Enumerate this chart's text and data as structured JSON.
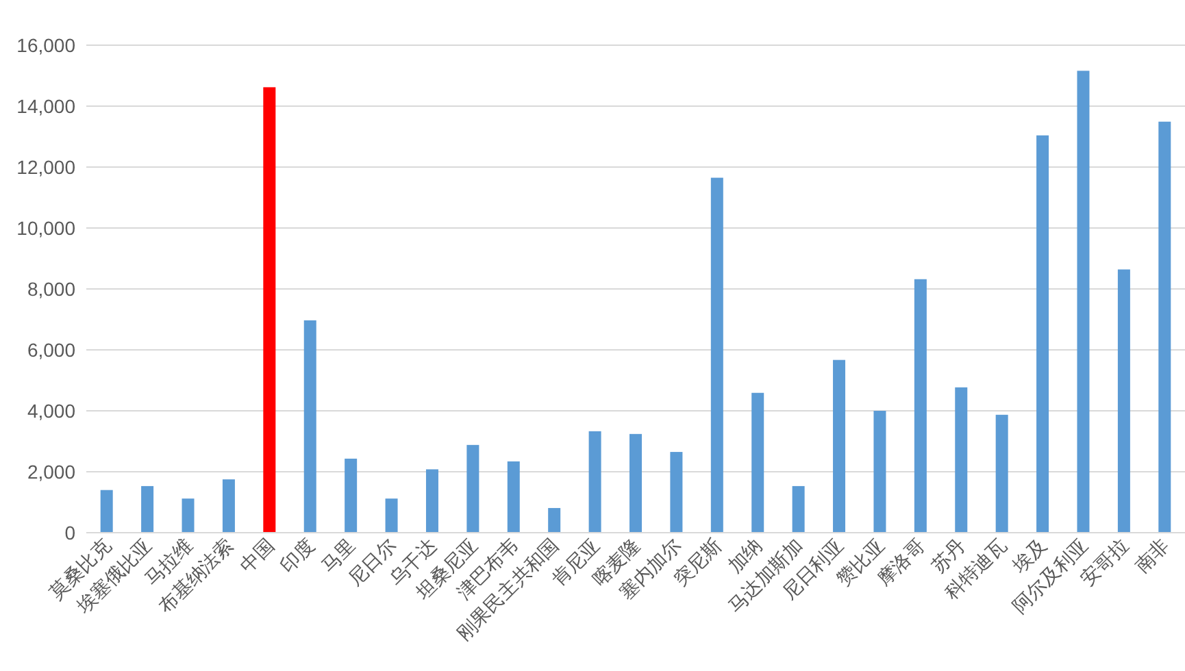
{
  "chart_data": {
    "type": "bar",
    "categories": [
      "莫桑比克",
      "埃塞俄比亚",
      "马拉维",
      "布基纳法索",
      "中国",
      "印度",
      "马里",
      "尼日尔",
      "乌干达",
      "坦桑尼亚",
      "津巴布韦",
      "刚果民主共和国",
      "肯尼亚",
      "喀麦隆",
      "塞内加尔",
      "突尼斯",
      "加纳",
      "马达加斯加",
      "尼日利亚",
      "赞比亚",
      "摩洛哥",
      "苏丹",
      "科特迪瓦",
      "埃及",
      "阿尔及利亚",
      "安哥拉",
      "南非"
    ],
    "values": [
      1400,
      1530,
      1120,
      1750,
      14620,
      6970,
      2430,
      1120,
      2080,
      2880,
      2340,
      810,
      3330,
      3240,
      2650,
      11650,
      4590,
      1530,
      5670,
      4000,
      8320,
      4770,
      3870,
      13040,
      15160,
      8640,
      13490
    ],
    "colors": [
      "#5b9bd5",
      "#5b9bd5",
      "#5b9bd5",
      "#5b9bd5",
      "#ff0000",
      "#5b9bd5",
      "#5b9bd5",
      "#5b9bd5",
      "#5b9bd5",
      "#5b9bd5",
      "#5b9bd5",
      "#5b9bd5",
      "#5b9bd5",
      "#5b9bd5",
      "#5b9bd5",
      "#5b9bd5",
      "#5b9bd5",
      "#5b9bd5",
      "#5b9bd5",
      "#5b9bd5",
      "#5b9bd5",
      "#5b9bd5",
      "#5b9bd5",
      "#5b9bd5",
      "#5b9bd5",
      "#5b9bd5",
      "#5b9bd5"
    ],
    "ylim": [
      0,
      16000
    ],
    "yticks": [
      {
        "value": 0,
        "label": "0"
      },
      {
        "value": 2000,
        "label": "2,000"
      },
      {
        "value": 4000,
        "label": "4,000"
      },
      {
        "value": 6000,
        "label": "6,000"
      },
      {
        "value": 8000,
        "label": "8,000"
      },
      {
        "value": 10000,
        "label": "10,000"
      },
      {
        "value": 12000,
        "label": "12,000"
      },
      {
        "value": 14000,
        "label": "14,000"
      },
      {
        "value": 16000,
        "label": "16,000"
      }
    ],
    "grid": "y"
  }
}
